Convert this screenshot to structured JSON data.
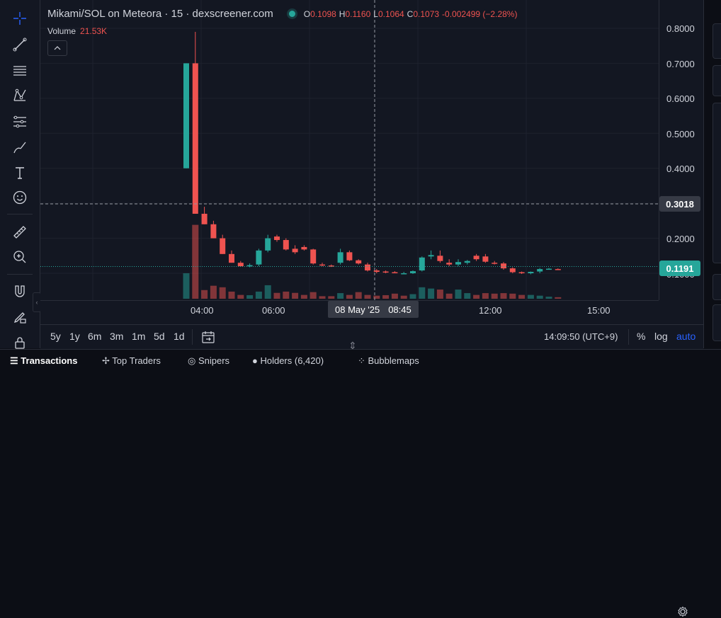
{
  "chart": {
    "symbol": "Mikami/SOL on Meteora · 15 · dexscreener.com",
    "ohlc": [
      {
        "label": "O",
        "value": "0.1098"
      },
      {
        "label": "H",
        "value": "0.1160"
      },
      {
        "label": "L",
        "value": "0.1064"
      },
      {
        "label": "C",
        "value": "0.1073"
      }
    ],
    "change": "-0.002499 (−2.28%)",
    "volume_label": "Volume",
    "volume_value": "21.53K",
    "price_ticks": [
      "0.8000",
      "0.7000",
      "0.6000",
      "0.5000",
      "0.4000",
      "0.2000",
      "0.1000"
    ],
    "crosshair_price": "0.3018",
    "last_price": "0.1191",
    "time_ticks": [
      "04:00",
      "06:00",
      "12:00",
      "15:00"
    ],
    "crosshair_date": "08 May '25",
    "crosshair_time": "08:45",
    "colors": {
      "up": "#26a69a",
      "down": "#ef5350",
      "background": "#131722"
    }
  },
  "chart_data": {
    "type": "candlestick",
    "y_min": 0.08,
    "y_max": 0.8,
    "x_range": [
      0,
      49
    ],
    "candles": [
      {
        "t": 0,
        "o": 0.4,
        "h": 0.7,
        "l": 0.4,
        "c": 0.7
      },
      {
        "t": 1,
        "o": 0.7,
        "h": 0.79,
        "l": 0.27,
        "c": 0.27
      },
      {
        "t": 2,
        "o": 0.27,
        "h": 0.29,
        "l": 0.24,
        "c": 0.24
      },
      {
        "t": 3,
        "o": 0.24,
        "h": 0.25,
        "l": 0.2,
        "c": 0.2
      },
      {
        "t": 4,
        "o": 0.2,
        "h": 0.21,
        "l": 0.155,
        "c": 0.155
      },
      {
        "t": 5,
        "o": 0.155,
        "h": 0.165,
        "l": 0.13,
        "c": 0.13
      },
      {
        "t": 6,
        "o": 0.13,
        "h": 0.135,
        "l": 0.12,
        "c": 0.12
      },
      {
        "t": 7,
        "o": 0.12,
        "h": 0.128,
        "l": 0.117,
        "c": 0.123
      },
      {
        "t": 8,
        "o": 0.125,
        "h": 0.17,
        "l": 0.12,
        "c": 0.165
      },
      {
        "t": 9,
        "o": 0.165,
        "h": 0.21,
        "l": 0.16,
        "c": 0.2
      },
      {
        "t": 10,
        "o": 0.205,
        "h": 0.21,
        "l": 0.19,
        "c": 0.195
      },
      {
        "t": 11,
        "o": 0.195,
        "h": 0.2,
        "l": 0.165,
        "c": 0.168
      },
      {
        "t": 12,
        "o": 0.17,
        "h": 0.18,
        "l": 0.155,
        "c": 0.16
      },
      {
        "t": 13,
        "o": 0.175,
        "h": 0.18,
        "l": 0.165,
        "c": 0.168
      },
      {
        "t": 14,
        "o": 0.168,
        "h": 0.17,
        "l": 0.125,
        "c": 0.128
      },
      {
        "t": 15,
        "o": 0.125,
        "h": 0.13,
        "l": 0.12,
        "c": 0.122
      },
      {
        "t": 16,
        "o": 0.122,
        "h": 0.125,
        "l": 0.118,
        "c": 0.12
      },
      {
        "t": 17,
        "o": 0.13,
        "h": 0.17,
        "l": 0.125,
        "c": 0.16
      },
      {
        "t": 18,
        "o": 0.16,
        "h": 0.165,
        "l": 0.135,
        "c": 0.137
      },
      {
        "t": 19,
        "o": 0.137,
        "h": 0.14,
        "l": 0.125,
        "c": 0.128
      },
      {
        "t": 20,
        "o": 0.125,
        "h": 0.13,
        "l": 0.105,
        "c": 0.108
      },
      {
        "t": 21,
        "o": 0.108,
        "h": 0.112,
        "l": 0.1,
        "c": 0.104
      },
      {
        "t": 22,
        "o": 0.105,
        "h": 0.108,
        "l": 0.1,
        "c": 0.103
      },
      {
        "t": 23,
        "o": 0.103,
        "h": 0.106,
        "l": 0.1,
        "c": 0.1
      },
      {
        "t": 24,
        "o": 0.1,
        "h": 0.104,
        "l": 0.097,
        "c": 0.1
      },
      {
        "t": 25,
        "o": 0.1,
        "h": 0.108,
        "l": 0.098,
        "c": 0.106
      },
      {
        "t": 26,
        "o": 0.108,
        "h": 0.148,
        "l": 0.105,
        "c": 0.145
      },
      {
        "t": 27,
        "o": 0.148,
        "h": 0.165,
        "l": 0.14,
        "c": 0.152
      },
      {
        "t": 28,
        "o": 0.15,
        "h": 0.165,
        "l": 0.13,
        "c": 0.135
      },
      {
        "t": 29,
        "o": 0.13,
        "h": 0.14,
        "l": 0.12,
        "c": 0.125
      },
      {
        "t": 30,
        "o": 0.125,
        "h": 0.14,
        "l": 0.12,
        "c": 0.132
      },
      {
        "t": 31,
        "o": 0.13,
        "h": 0.138,
        "l": 0.125,
        "c": 0.135
      },
      {
        "t": 32,
        "o": 0.15,
        "h": 0.155,
        "l": 0.135,
        "c": 0.14
      },
      {
        "t": 33,
        "o": 0.148,
        "h": 0.155,
        "l": 0.13,
        "c": 0.133
      },
      {
        "t": 34,
        "o": 0.13,
        "h": 0.135,
        "l": 0.125,
        "c": 0.128
      },
      {
        "t": 35,
        "o": 0.128,
        "h": 0.132,
        "l": 0.11,
        "c": 0.114
      },
      {
        "t": 36,
        "o": 0.114,
        "h": 0.117,
        "l": 0.1,
        "c": 0.103
      },
      {
        "t": 37,
        "o": 0.103,
        "h": 0.105,
        "l": 0.098,
        "c": 0.1
      },
      {
        "t": 38,
        "o": 0.1,
        "h": 0.105,
        "l": 0.097,
        "c": 0.104
      },
      {
        "t": 39,
        "o": 0.105,
        "h": 0.115,
        "l": 0.1,
        "c": 0.112
      },
      {
        "t": 40,
        "o": 0.112,
        "h": 0.115,
        "l": 0.11,
        "c": 0.113
      },
      {
        "t": 41,
        "o": 0.112,
        "h": 0.114,
        "l": 0.11,
        "c": 0.111
      }
    ],
    "volumes": [
      {
        "t": 0,
        "v": 0.1,
        "dir": "up"
      },
      {
        "t": 1,
        "v": 0.29,
        "dir": "down"
      },
      {
        "t": 2,
        "v": 0.034,
        "dir": "down"
      },
      {
        "t": 3,
        "v": 0.051,
        "dir": "down"
      },
      {
        "t": 4,
        "v": 0.045,
        "dir": "down"
      },
      {
        "t": 5,
        "v": 0.028,
        "dir": "down"
      },
      {
        "t": 6,
        "v": 0.015,
        "dir": "down"
      },
      {
        "t": 7,
        "v": 0.014,
        "dir": "up"
      },
      {
        "t": 8,
        "v": 0.028,
        "dir": "up"
      },
      {
        "t": 9,
        "v": 0.053,
        "dir": "up"
      },
      {
        "t": 10,
        "v": 0.023,
        "dir": "down"
      },
      {
        "t": 11,
        "v": 0.028,
        "dir": "down"
      },
      {
        "t": 12,
        "v": 0.023,
        "dir": "down"
      },
      {
        "t": 13,
        "v": 0.015,
        "dir": "down"
      },
      {
        "t": 14,
        "v": 0.026,
        "dir": "down"
      },
      {
        "t": 15,
        "v": 0.01,
        "dir": "down"
      },
      {
        "t": 16,
        "v": 0.01,
        "dir": "down"
      },
      {
        "t": 17,
        "v": 0.022,
        "dir": "up"
      },
      {
        "t": 18,
        "v": 0.015,
        "dir": "down"
      },
      {
        "t": 19,
        "v": 0.026,
        "dir": "down"
      },
      {
        "t": 20,
        "v": 0.015,
        "dir": "down"
      },
      {
        "t": 21,
        "v": 0.012,
        "dir": "down"
      },
      {
        "t": 22,
        "v": 0.014,
        "dir": "down"
      },
      {
        "t": 23,
        "v": 0.02,
        "dir": "down"
      },
      {
        "t": 24,
        "v": 0.012,
        "dir": "down"
      },
      {
        "t": 25,
        "v": 0.018,
        "dir": "up"
      },
      {
        "t": 26,
        "v": 0.045,
        "dir": "up"
      },
      {
        "t": 27,
        "v": 0.04,
        "dir": "up"
      },
      {
        "t": 28,
        "v": 0.036,
        "dir": "down"
      },
      {
        "t": 29,
        "v": 0.02,
        "dir": "down"
      },
      {
        "t": 30,
        "v": 0.036,
        "dir": "up"
      },
      {
        "t": 31,
        "v": 0.022,
        "dir": "up"
      },
      {
        "t": 32,
        "v": 0.015,
        "dir": "down"
      },
      {
        "t": 33,
        "v": 0.022,
        "dir": "down"
      },
      {
        "t": 34,
        "v": 0.02,
        "dir": "down"
      },
      {
        "t": 35,
        "v": 0.022,
        "dir": "down"
      },
      {
        "t": 36,
        "v": 0.02,
        "dir": "down"
      },
      {
        "t": 37,
        "v": 0.015,
        "dir": "down"
      },
      {
        "t": 38,
        "v": 0.015,
        "dir": "up"
      },
      {
        "t": 39,
        "v": 0.012,
        "dir": "up"
      },
      {
        "t": 40,
        "v": 0.008,
        "dir": "up"
      },
      {
        "t": 41,
        "v": 0.006,
        "dir": "down"
      }
    ]
  },
  "toolbar": {
    "tools": [
      {
        "name": "crosshair-icon"
      },
      {
        "name": "trend-line-icon"
      },
      {
        "name": "fib-channel-icon"
      },
      {
        "name": "pattern-icon"
      },
      {
        "name": "prediction-icon"
      },
      {
        "name": "brush-icon"
      },
      {
        "name": "text-tool-icon"
      },
      {
        "name": "emoji-icon"
      },
      {
        "name": "ruler-icon"
      },
      {
        "name": "zoom-in-icon"
      },
      {
        "name": "magnet-icon"
      },
      {
        "name": "lock-drawing-icon"
      },
      {
        "name": "lock-icon"
      }
    ]
  },
  "bottom_bar": {
    "ranges": [
      "5y",
      "1y",
      "6m",
      "3m",
      "1m",
      "5d",
      "1d"
    ],
    "clock": "14:09:50 (UTC+9)",
    "percent": "%",
    "log": "log",
    "auto": "auto"
  },
  "tabs": [
    {
      "label": "Transactions"
    },
    {
      "label": "Top Traders"
    },
    {
      "label": "Snipers"
    },
    {
      "label": "Holders (6,420)"
    },
    {
      "label": "Bubblemaps"
    }
  ]
}
